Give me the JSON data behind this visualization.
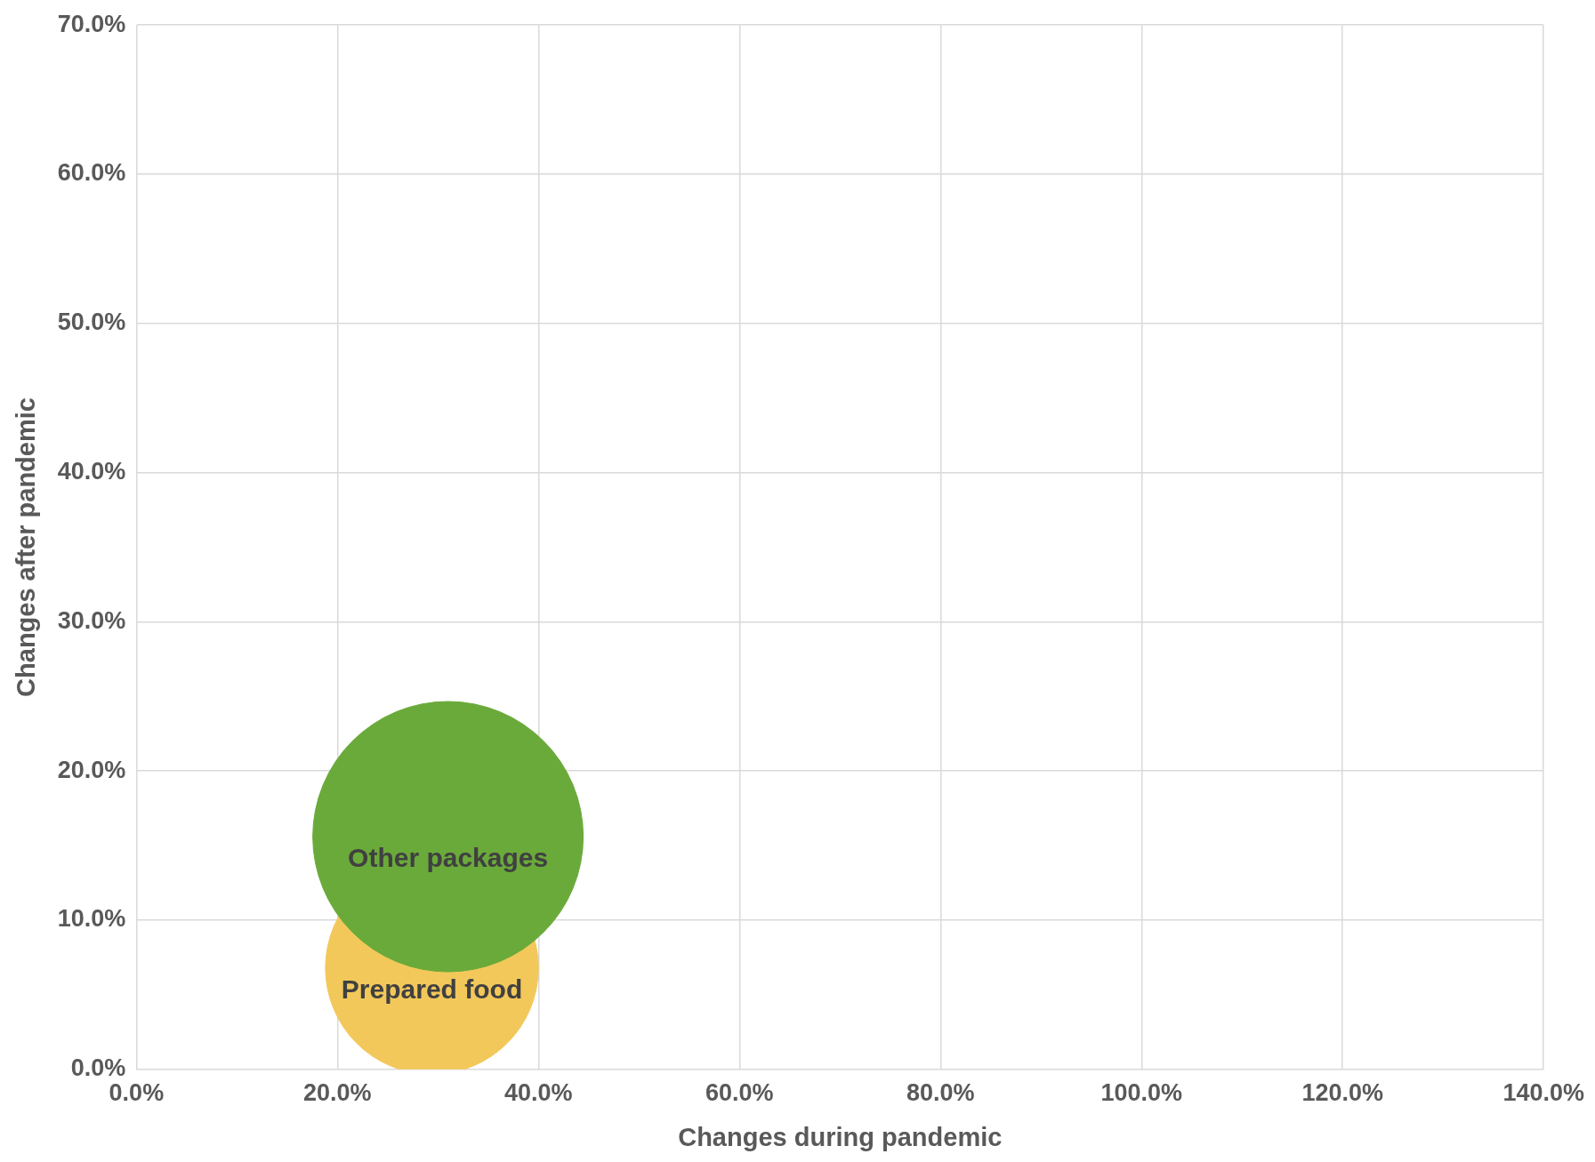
{
  "chart_data": {
    "type": "bubble",
    "xlabel": "Changes during pandemic",
    "ylabel": "Changes after pandemic",
    "xlim": [
      0,
      140
    ],
    "ylim": [
      0,
      70
    ],
    "xticks": [
      {
        "value": 0,
        "label": "0.0%"
      },
      {
        "value": 20,
        "label": "20.0%"
      },
      {
        "value": 40,
        "label": "40.0%"
      },
      {
        "value": 60,
        "label": "60.0%"
      },
      {
        "value": 80,
        "label": "80.0%"
      },
      {
        "value": 100,
        "label": "100.0%"
      },
      {
        "value": 120,
        "label": "120.0%"
      },
      {
        "value": 140,
        "label": "140.0%"
      }
    ],
    "yticks": [
      {
        "value": 0,
        "label": "0.0%"
      },
      {
        "value": 10,
        "label": "10.0%"
      },
      {
        "value": 20,
        "label": "20.0%"
      },
      {
        "value": 30,
        "label": "30.0%"
      },
      {
        "value": 40,
        "label": "40.0%"
      },
      {
        "value": 50,
        "label": "50.0%"
      },
      {
        "value": 60,
        "label": "60.0%"
      },
      {
        "value": 70,
        "label": "70.0%"
      }
    ],
    "grid": true,
    "legend": false,
    "series": [
      {
        "name": "Other packages",
        "color": "#6aaa3a",
        "x": [
          31.0
        ],
        "values": [
          15.6
        ],
        "sizes": [
          1
        ]
      },
      {
        "name": "Prepared food",
        "color": "#f2c85a",
        "x": [
          29.4
        ],
        "values": [
          6.8
        ],
        "sizes": [
          0.62
        ]
      }
    ]
  }
}
